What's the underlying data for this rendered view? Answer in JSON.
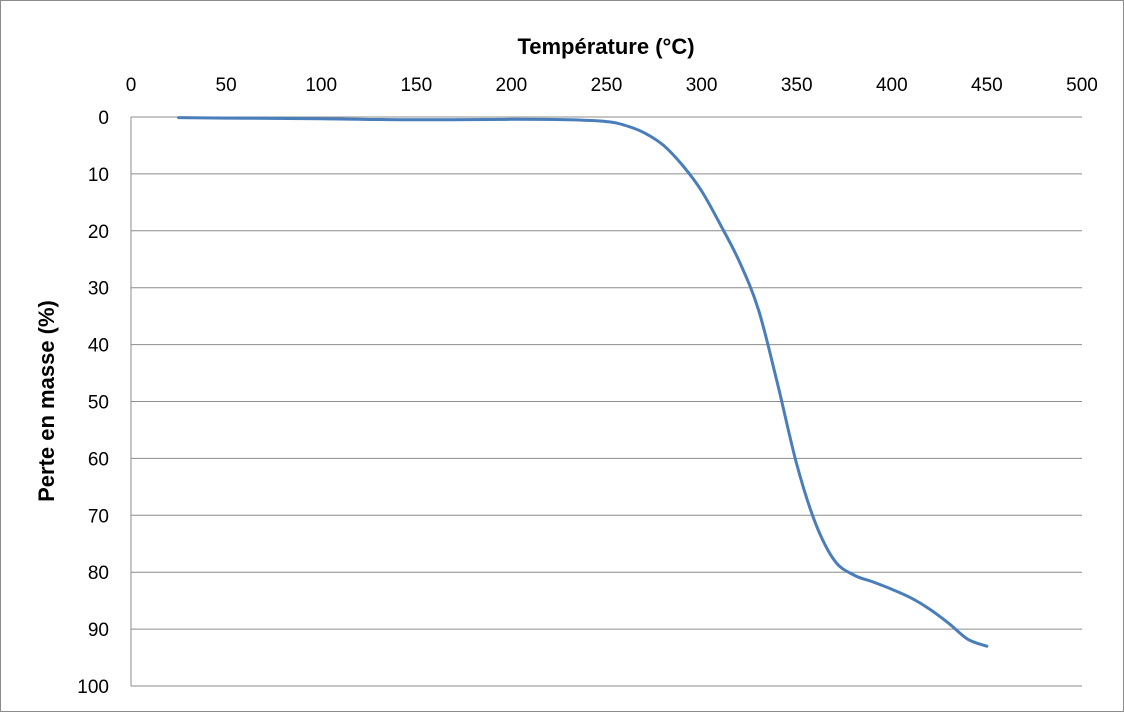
{
  "chart_data": {
    "type": "line",
    "title": "",
    "xlabel": "Température (°C)",
    "ylabel": "Perte en masse (%)",
    "x_axis_position": "top",
    "y_axis_inverted": true,
    "xlim": [
      0,
      500
    ],
    "ylim": [
      0,
      100
    ],
    "x_ticks": [
      "0",
      "50",
      "100",
      "150",
      "200",
      "250",
      "300",
      "350",
      "400",
      "450",
      "500"
    ],
    "y_ticks": [
      "0",
      "10",
      "20",
      "30",
      "40",
      "50",
      "60",
      "70",
      "80",
      "90",
      "100"
    ],
    "grid": "horizontal",
    "legend": "none",
    "series_color": "#4a7ebb",
    "gridline_color": "#8c8c8c",
    "series": [
      {
        "x": [
          25,
          50,
          100,
          150,
          200,
          230,
          250,
          260,
          270,
          280,
          290,
          300,
          310,
          320,
          330,
          340,
          350,
          360,
          370,
          380,
          390,
          400,
          410,
          420,
          430,
          440,
          450
        ],
        "y": [
          0.1,
          0.2,
          0.3,
          0.5,
          0.4,
          0.5,
          0.8,
          1.5,
          2.8,
          5.0,
          8.5,
          13.0,
          19.0,
          25.5,
          34.0,
          47.0,
          61.0,
          71.5,
          78.0,
          80.5,
          81.7,
          83.0,
          84.5,
          86.5,
          89.0,
          91.8,
          93.0
        ]
      }
    ]
  }
}
